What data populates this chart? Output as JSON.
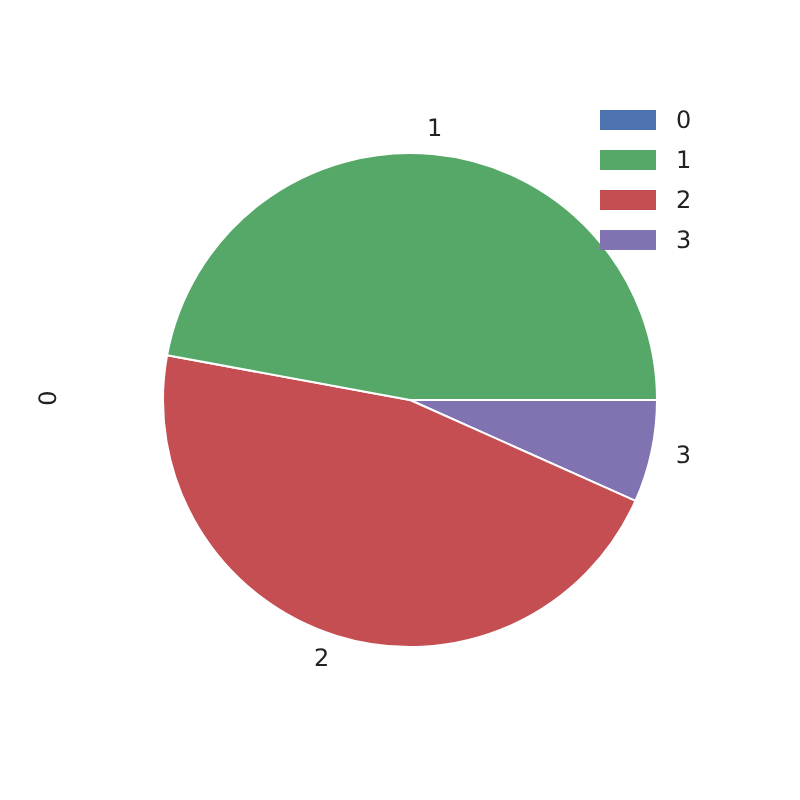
{
  "chart_data": {
    "type": "pie",
    "ylabel": "0",
    "categories": [
      "0",
      "1",
      "2",
      "3"
    ],
    "values": [
      0,
      47.1,
      46.2,
      6.7
    ],
    "colors": [
      "#4c72b0",
      "#55a868",
      "#c44e52",
      "#8172b2"
    ],
    "legend": "top right"
  }
}
